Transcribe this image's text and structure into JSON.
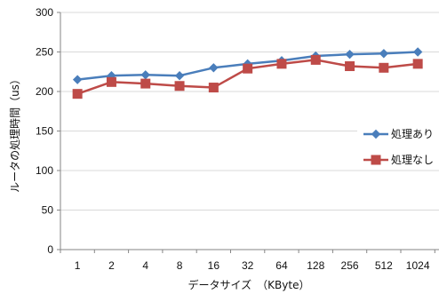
{
  "chart_data": {
    "type": "line",
    "title": "",
    "xlabel": "データサイズ　（KByte）",
    "ylabel": "ルータの処理時間（us）",
    "categories": [
      "1",
      "2",
      "4",
      "8",
      "16",
      "32",
      "64",
      "128",
      "256",
      "512",
      "1024"
    ],
    "ylim": [
      0,
      300
    ],
    "yticks": [
      0,
      50,
      100,
      150,
      200,
      250,
      300
    ],
    "grid": true,
    "legend_position": "right",
    "series": [
      {
        "name": "処理あり",
        "color": "#4a7ebb",
        "marker": "diamond",
        "values": [
          215,
          220,
          221,
          220,
          230,
          235,
          239,
          245,
          247,
          248,
          250
        ]
      },
      {
        "name": "処理なし",
        "color": "#be4b48",
        "marker": "square",
        "values": [
          197,
          212,
          210,
          207,
          205,
          229,
          235,
          240,
          232,
          230,
          235
        ]
      }
    ]
  }
}
